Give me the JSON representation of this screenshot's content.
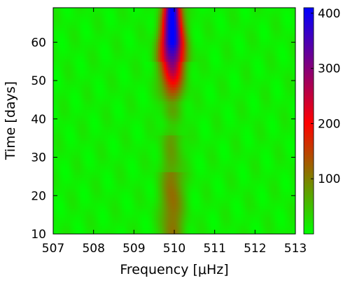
{
  "chart_data": {
    "type": "heatmap",
    "title": "",
    "xlabel": "Frequency [μHz]",
    "ylabel": "Time [days]",
    "xlim": [
      507,
      513
    ],
    "ylim": [
      10,
      69
    ],
    "x_ticks": [
      507,
      508,
      509,
      510,
      511,
      512,
      513
    ],
    "y_ticks": [
      10,
      20,
      30,
      40,
      50,
      60
    ],
    "colorbar": {
      "range": [
        0,
        410
      ],
      "ticks": [
        100,
        200,
        300,
        400
      ],
      "colormap": [
        {
          "value": 0,
          "color": "#00ff00"
        },
        {
          "value": 200,
          "color": "#ff0000"
        },
        {
          "value": 410,
          "color": "#0000ff"
        }
      ]
    },
    "features": [
      {
        "description": "peak ridge",
        "frequency_center": 509.95,
        "peak_power_max": 410,
        "time_range_of_max": [
          60,
          69
        ]
      },
      {
        "description": "peak ridge",
        "frequency_center": 509.95,
        "approx_power": 200,
        "time": 50
      },
      {
        "description": "weak ridge",
        "frequency_center": 509.95,
        "approx_power": 100,
        "time": 20
      }
    ],
    "grid": false
  }
}
